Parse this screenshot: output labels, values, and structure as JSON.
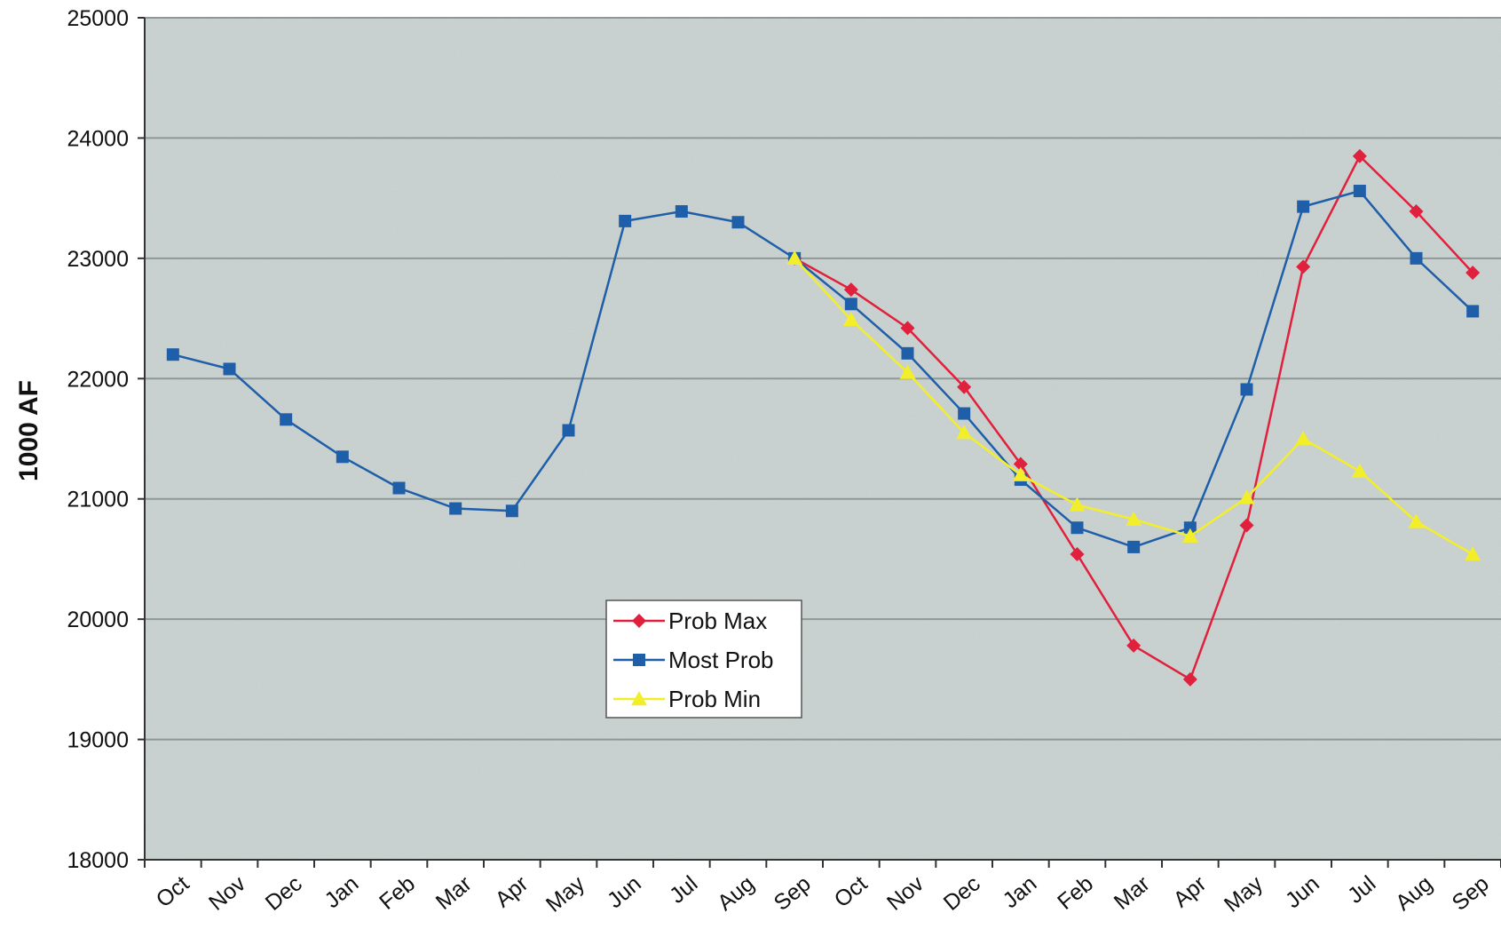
{
  "chart_data": {
    "type": "line",
    "title": "",
    "xlabel": "",
    "ylabel": "1000 AF",
    "ylim": [
      18000,
      25000
    ],
    "yticks": [
      18000,
      19000,
      20000,
      21000,
      22000,
      23000,
      24000,
      25000
    ],
    "grid": true,
    "legend_position": "center-bottom",
    "colors": {
      "plot_background": "#c9d2d0",
      "gridline": "#8e9896",
      "axis": "#333333"
    },
    "categories": [
      "Oct",
      "Nov",
      "Dec",
      "Jan",
      "Feb",
      "Mar",
      "Apr",
      "May",
      "Jun",
      "Jul",
      "Aug",
      "Sep",
      "Oct",
      "Nov",
      "Dec",
      "Jan",
      "Feb",
      "Mar",
      "Apr",
      "May",
      "Jun",
      "Jul",
      "Aug",
      "Sep"
    ],
    "series": [
      {
        "name": "Prob Max",
        "color": "#e0203c",
        "marker": "diamond",
        "values": [
          null,
          null,
          null,
          null,
          null,
          null,
          null,
          null,
          null,
          null,
          null,
          23000,
          22740,
          22420,
          21930,
          21290,
          20540,
          19780,
          19500,
          20780,
          22930,
          23850,
          23390,
          22880
        ]
      },
      {
        "name": "Most Prob",
        "color": "#1f5ea8",
        "marker": "square",
        "values": [
          22200,
          22080,
          21660,
          21350,
          21090,
          20920,
          20900,
          21570,
          23310,
          23390,
          23300,
          23000,
          22620,
          22210,
          21710,
          21160,
          20760,
          20600,
          20760,
          21910,
          23430,
          23560,
          23000,
          22560
        ]
      },
      {
        "name": "Prob Min",
        "color": "#f3ee2a",
        "marker": "triangle",
        "values": [
          null,
          null,
          null,
          null,
          null,
          null,
          null,
          null,
          null,
          null,
          null,
          23000,
          22490,
          22050,
          21550,
          21200,
          20950,
          20830,
          20690,
          21010,
          21500,
          21230,
          20810,
          20540
        ]
      }
    ]
  }
}
